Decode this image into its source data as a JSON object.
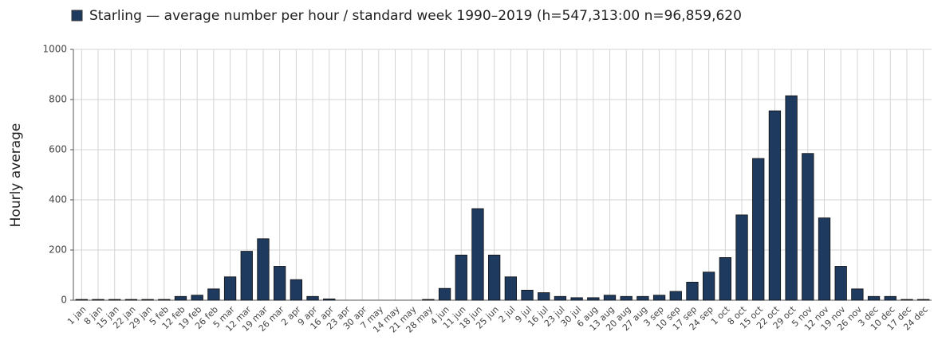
{
  "chart_data": {
    "type": "bar",
    "title": "Starling — average number per hour / standard week 1990–2019 (h=547,313:00 n=96,859,620",
    "y_label": "Hourly average",
    "categories": [
      "1 jan",
      "8 jan",
      "15 jan",
      "22 jan",
      "29 jan",
      "5 feb",
      "12 feb",
      "19 feb",
      "26 feb",
      "5 mar",
      "12 mar",
      "19 mar",
      "26 mar",
      "2 apr",
      "9 apr",
      "16 apr",
      "23 apr",
      "30 apr",
      "7 may",
      "14 may",
      "21 may",
      "28 may",
      "4 jun",
      "11 jun",
      "18 jun",
      "25 jun",
      "2 jul",
      "9 jul",
      "16 jul",
      "23 jul",
      "30 jul",
      "6 aug",
      "13 aug",
      "20 aug",
      "27 aug",
      "3 sep",
      "10 sep",
      "17 sep",
      "24 sep",
      "1 oct",
      "8 oct",
      "15 oct",
      "22 oct",
      "29 oct",
      "5 nov",
      "12 nov",
      "19 nov",
      "26 nov",
      "3 dec",
      "10 dec",
      "17 dec",
      "24 dec"
    ],
    "values": [
      3,
      3,
      3,
      3,
      3,
      3,
      15,
      20,
      45,
      93,
      195,
      245,
      135,
      82,
      15,
      5,
      0,
      0,
      0,
      0,
      0,
      3,
      47,
      180,
      365,
      180,
      93,
      40,
      30,
      15,
      10,
      10,
      20,
      15,
      15,
      20,
      35,
      72,
      112,
      170,
      340,
      565,
      755,
      815,
      585,
      328,
      135,
      45,
      15,
      15,
      3,
      3
    ],
    "color": "#1f3a5f",
    "ylim": [
      0,
      1000
    ],
    "yticks": [
      0,
      200,
      400,
      600,
      800,
      1000
    ],
    "grid": true
  }
}
